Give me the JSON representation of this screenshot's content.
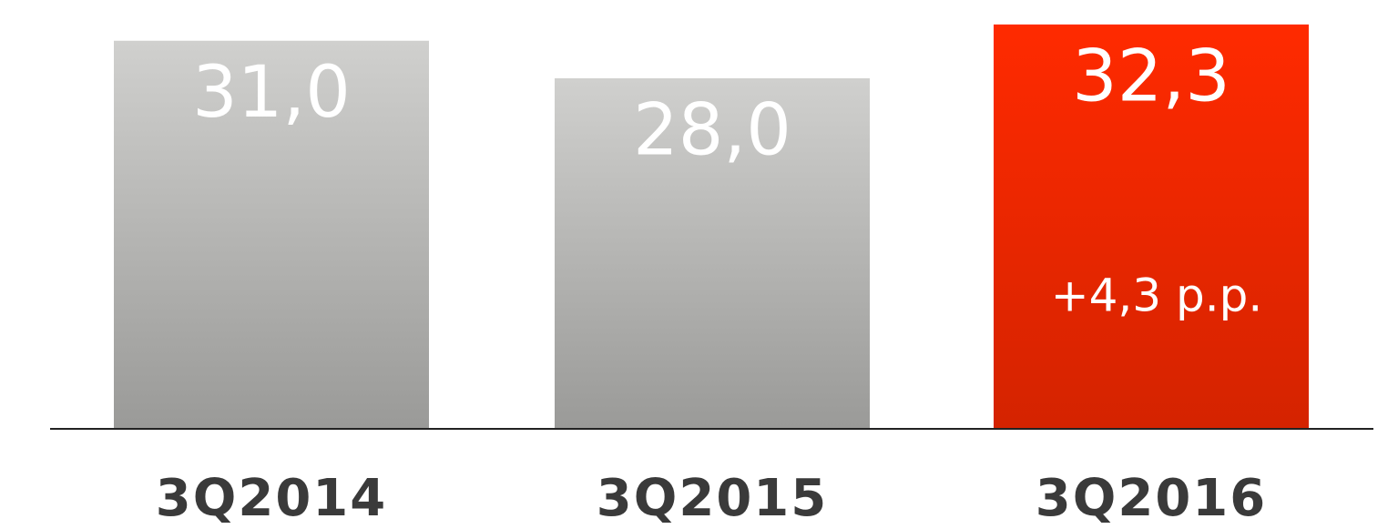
{
  "chart_data": {
    "type": "bar",
    "categories": [
      "3Q2014",
      "3Q2015",
      "3Q2016"
    ],
    "values": [
      31.0,
      28.0,
      32.3
    ],
    "value_labels": [
      "31,0",
      "28,0",
      "32,3"
    ],
    "colors": [
      "#d0d0ce",
      "#d0d0ce",
      "#ff2a00"
    ],
    "annotation": "+4,3 p.p.",
    "ylim": [
      0,
      34
    ]
  }
}
